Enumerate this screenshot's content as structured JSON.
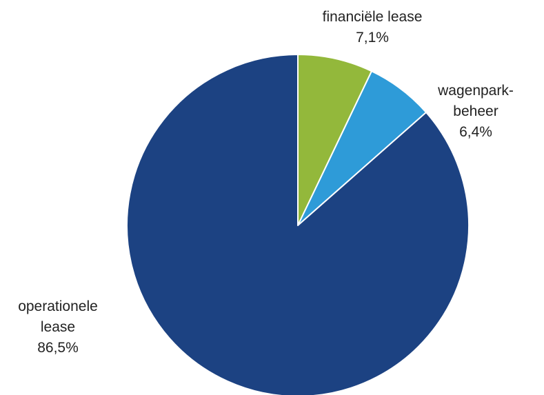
{
  "chart_data": {
    "type": "pie",
    "start_angle_deg": 0,
    "direction": "clockwise",
    "slices": [
      {
        "label_lines": [
          "financiële lease"
        ],
        "value_text": "7,1%",
        "value": 7.1,
        "color": "#93b83b"
      },
      {
        "label_lines": [
          "wagenpark-",
          "beheer"
        ],
        "value_text": "6,4%",
        "value": 6.4,
        "color": "#2e9bd8"
      },
      {
        "label_lines": [
          "operationele",
          "lease"
        ],
        "value_text": "86,5%",
        "value": 86.5,
        "color": "#1c4282"
      }
    ],
    "slice_border_color": "#ffffff"
  }
}
